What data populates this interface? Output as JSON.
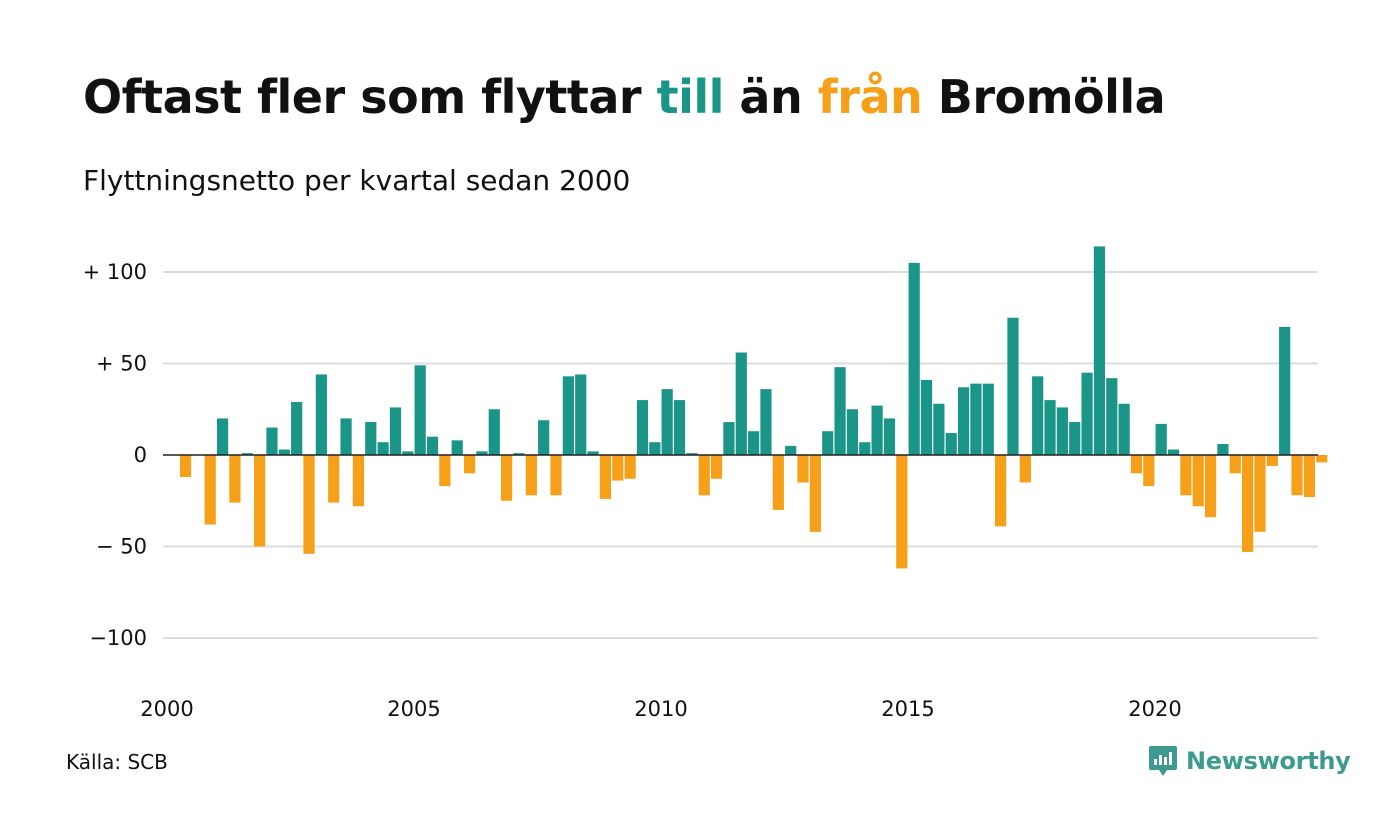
{
  "header": {
    "title_parts": [
      "Oftast fler som flyttar ",
      "till",
      " än ",
      "från",
      " Bromölla"
    ],
    "subtitle": "Flyttningsnetto per kvartal sedan 2000"
  },
  "footer": {
    "source": "Källa: SCB",
    "brand": "Newsworthy",
    "brand_icon": "newsworthy-logo-icon"
  },
  "colors": {
    "positive": "#1a9587",
    "negative": "#f6a01a",
    "grid": "#dddddd",
    "zero_line": "#222222"
  },
  "chart_data": {
    "type": "bar",
    "title": "Oftast fler som flyttar till än från Bromölla",
    "subtitle": "Flyttningsnetto per kvartal sedan 2000",
    "x_start": "2000 Q1",
    "interval": "quarter",
    "x_ticks": [
      "2000",
      "2005",
      "2010",
      "2015",
      "2020"
    ],
    "y_ticks": [
      {
        "value": 100,
        "label": "+ 100"
      },
      {
        "value": 50,
        "label": "+  50"
      },
      {
        "value": 0,
        "label": "0"
      },
      {
        "value": -50,
        "label": "− 50"
      },
      {
        "value": -100,
        "label": "−100"
      }
    ],
    "ylim": [
      -110,
      115
    ],
    "grid": true,
    "values": [
      0,
      -12,
      0,
      -38,
      20,
      -26,
      1,
      -50,
      15,
      3,
      29,
      -54,
      44,
      -26,
      20,
      -28,
      18,
      7,
      26,
      2,
      49,
      10,
      -17,
      8,
      -10,
      2,
      25,
      -25,
      1,
      -22,
      19,
      -22,
      43,
      44,
      2,
      -24,
      -14,
      -13,
      30,
      7,
      36,
      30,
      1,
      -22,
      -13,
      18,
      56,
      13,
      36,
      -30,
      5,
      -15,
      -42,
      13,
      48,
      25,
      7,
      27,
      20,
      -62,
      105,
      41,
      28,
      12,
      37,
      39,
      39,
      -39,
      75,
      -15,
      43,
      30,
      26,
      18,
      45,
      114,
      42,
      28,
      -10,
      -17,
      17,
      3,
      -22,
      -28,
      -34,
      6,
      -10,
      -53,
      -42,
      -6,
      70,
      -22,
      -23,
      -4
    ]
  }
}
